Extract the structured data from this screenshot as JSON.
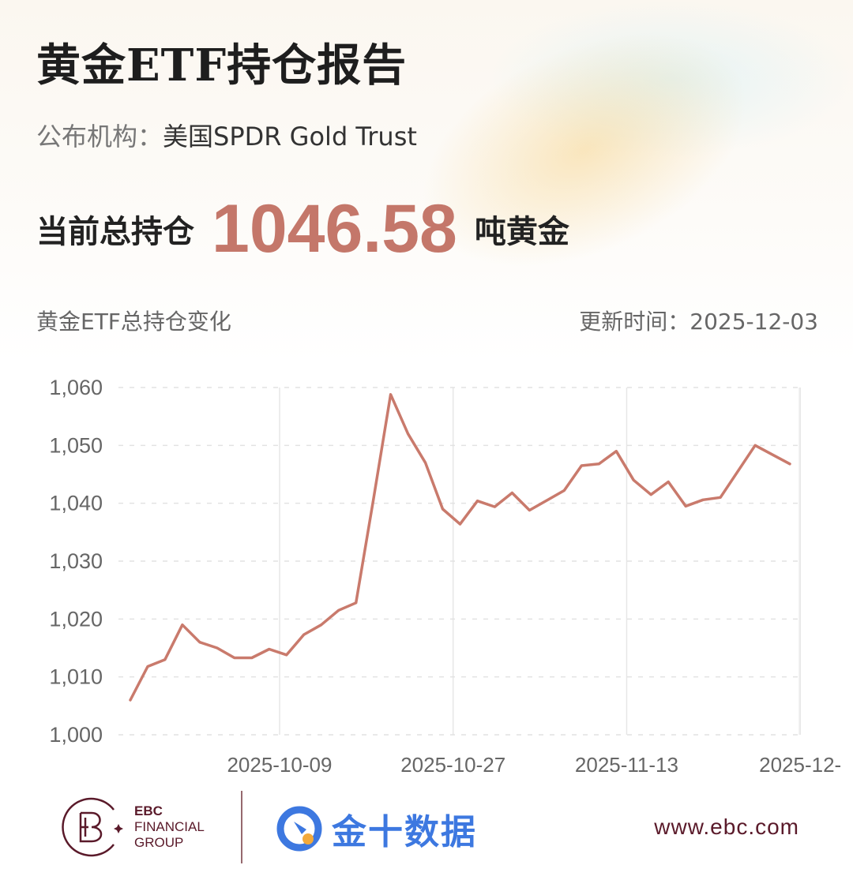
{
  "header": {
    "title": "黄金ETF持仓报告",
    "publisher_label": "公布机构：",
    "publisher": "美国SPDR Gold Trust",
    "holding_label": "当前总持仓",
    "holding_value": "1046.58",
    "holding_unit": "吨黄金"
  },
  "chart_header": {
    "label": "黄金ETF总持仓变化",
    "updated_label": "更新时间：",
    "updated": "2025-12-03"
  },
  "colors": {
    "line": "#c97a6c",
    "accent": "#c4776a",
    "ebc": "#5a1a2a",
    "jin10": "#3d78e0"
  },
  "chart_data": {
    "type": "line",
    "title": "",
    "xlabel": "",
    "ylabel": "",
    "ylim": [
      1000,
      1060
    ],
    "yticks": [
      "1,000",
      "1,010",
      "1,020",
      "1,030",
      "1,040",
      "1,050",
      "1,060"
    ],
    "ytick_values": [
      1000,
      1010,
      1020,
      1030,
      1040,
      1050,
      1060
    ],
    "xticks": [
      "2025-10-09",
      "2025-10-27",
      "2025-11-13",
      "2025-12-"
    ],
    "grid": true,
    "values": [
      1006.0,
      1011.8,
      1013.0,
      1019.0,
      1016.0,
      1015.0,
      1013.3,
      1013.3,
      1014.8,
      1013.8,
      1017.3,
      1019.0,
      1021.5,
      1022.8,
      1040.5,
      1058.8,
      1052.0,
      1047.0,
      1039.0,
      1036.4,
      1040.4,
      1039.4,
      1041.8,
      1038.8,
      1040.5,
      1042.2,
      1046.5,
      1046.8,
      1049.0,
      1044.0,
      1041.5,
      1043.7,
      1039.5,
      1040.6,
      1041.0,
      1045.5,
      1050.0,
      1048.4,
      1046.8
    ]
  },
  "footer": {
    "ebc_line1": "EBC",
    "ebc_line2": "FINANCIAL",
    "ebc_line3": "GROUP",
    "jin10": "金十数据",
    "url": "www.ebc.com"
  }
}
